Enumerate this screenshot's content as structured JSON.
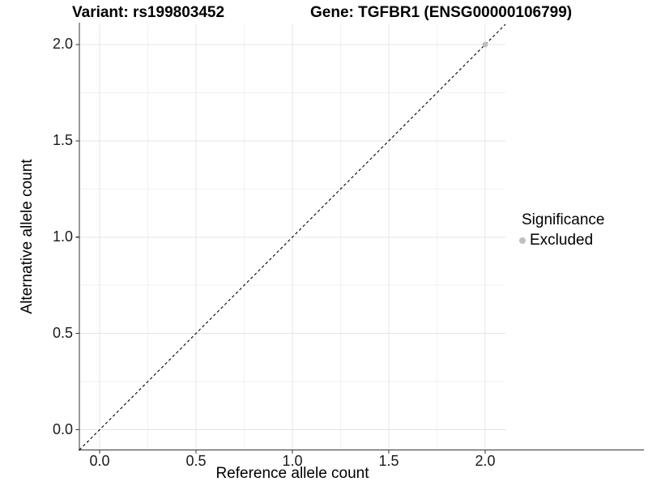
{
  "header": {
    "variant_title": "Variant: rs199803452",
    "gene_title": "Gene: TGFBR1 (ENSG00000106799)"
  },
  "axes": {
    "x": {
      "label": "Reference allele count",
      "ticks": [
        "0.0",
        "0.5",
        "1.0",
        "1.5",
        "2.0"
      ]
    },
    "y": {
      "label": "Alternative allele count",
      "ticks": [
        "0.0",
        "0.5",
        "1.0",
        "1.5",
        "2.0"
      ]
    }
  },
  "legend": {
    "title": "Significance",
    "items": [
      {
        "label": "Excluded",
        "color": "#bfbfbf"
      }
    ]
  },
  "chart_data": {
    "type": "scatter",
    "title": "Variant: rs199803452   Gene: TGFBR1 (ENSG00000106799)",
    "xlabel": "Reference allele count",
    "ylabel": "Alternative allele count",
    "xlim": [
      -0.105,
      2.105
    ],
    "ylim": [
      -0.105,
      2.105
    ],
    "x_ticks": [
      0.0,
      0.5,
      1.0,
      1.5,
      2.0
    ],
    "y_ticks": [
      0.0,
      0.5,
      1.0,
      1.5,
      2.0
    ],
    "grid": true,
    "legend_position": "right",
    "series": [
      {
        "name": "Excluded",
        "color": "#bfbfbf",
        "points": [
          {
            "x": 2.0,
            "y": 2.0
          }
        ]
      }
    ],
    "reference_line": {
      "type": "identity",
      "equation": "y = x",
      "style": "dashed",
      "color": "#000000"
    },
    "colors": {
      "grid_major": "#e4e4e4",
      "grid_minor": "#f1f1f1",
      "axis_line": "#343434",
      "tick_mark": "#343434",
      "point": "#bfbfbf"
    }
  }
}
